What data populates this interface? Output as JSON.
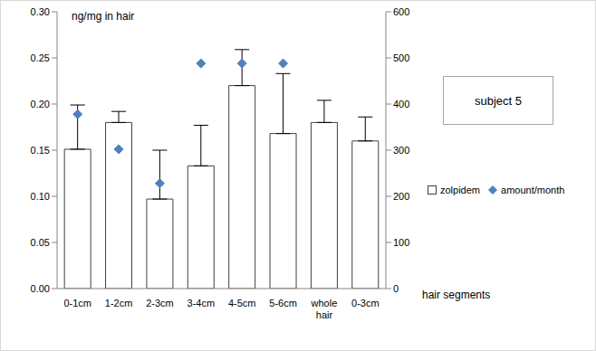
{
  "chart_data": {
    "type": "bar",
    "title": "subject 5",
    "y_label": "ng/mg in hair",
    "x_label": "hair segments",
    "categories": [
      "0-1cm",
      "1-2cm",
      "2-3cm",
      "3-4cm",
      "4-5cm",
      "5-6cm",
      "whole hair",
      "0-3cm"
    ],
    "series": [
      {
        "name": "zolpidem",
        "type": "bar",
        "color": "#ffffff",
        "values": [
          0.151,
          0.18,
          0.097,
          0.133,
          0.22,
          0.168,
          0.18,
          0.16
        ],
        "errors": [
          0.048,
          0.012,
          0.053,
          0.044,
          0.039,
          0.065,
          0.024,
          0.026
        ]
      },
      {
        "name": "amount/month",
        "type": "scatter",
        "marker": "diamond",
        "color": "#4f81bd",
        "axis": "y2",
        "values": [
          378,
          302,
          228,
          488,
          488,
          488,
          null,
          null
        ]
      }
    ],
    "ylim": [
      0,
      0.3
    ],
    "yticks": [
      {
        "value": 0,
        "label": "0.00"
      },
      {
        "value": 0.05,
        "label": "0.05"
      },
      {
        "value": 0.1,
        "label": "0.10"
      },
      {
        "value": 0.15,
        "label": "0.15"
      },
      {
        "value": 0.2,
        "label": "0.20"
      },
      {
        "value": 0.25,
        "label": "0.25"
      },
      {
        "value": 0.3,
        "label": "0.30"
      }
    ],
    "y2lim": [
      0,
      600
    ],
    "y2ticks": [
      0,
      100,
      200,
      300,
      400,
      500,
      600
    ],
    "grid": false,
    "legend": "right"
  }
}
